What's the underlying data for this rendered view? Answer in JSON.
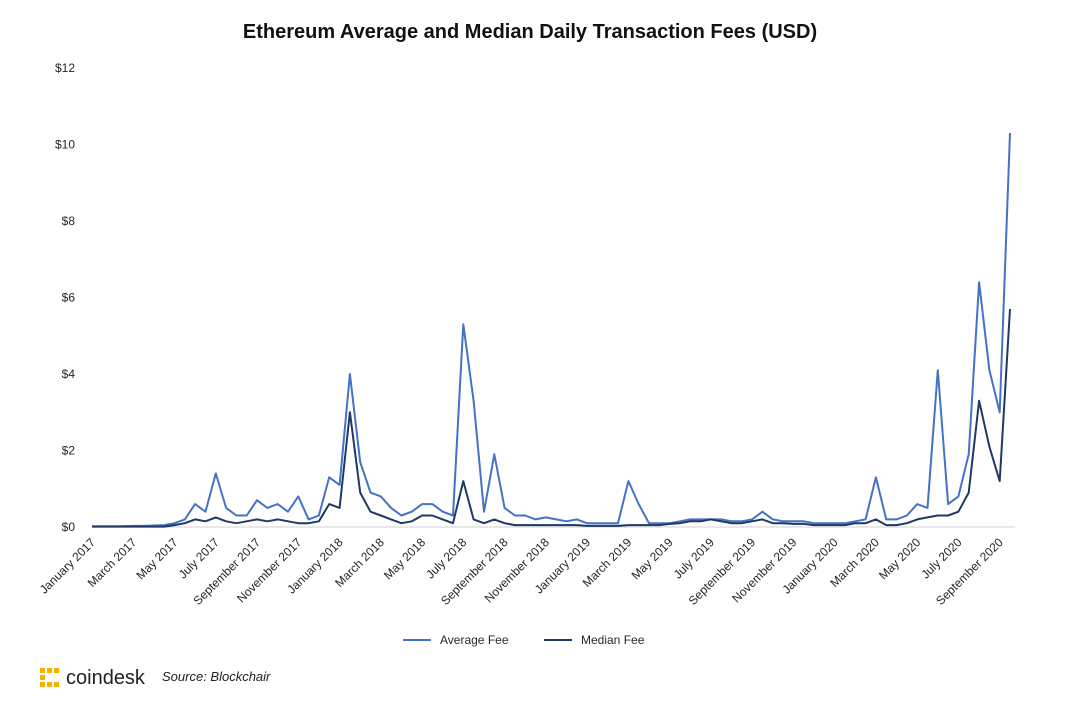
{
  "chart_data": {
    "type": "line",
    "title": "Ethereum Average and Median Daily Transaction Fees (USD)",
    "brand": "coindesk",
    "source": "Source: Blockchair",
    "categories": [
      "January 2017",
      null,
      null,
      null,
      "March 2017",
      null,
      null,
      null,
      "May 2017",
      null,
      null,
      null,
      "July 2017",
      null,
      null,
      null,
      "September 2017",
      null,
      null,
      null,
      "November 2017",
      null,
      null,
      null,
      "January 2018",
      null,
      null,
      null,
      "March 2018",
      null,
      null,
      null,
      "May 2018",
      null,
      null,
      null,
      "July 2018",
      null,
      null,
      null,
      "September 2018",
      null,
      null,
      null,
      "November 2018",
      null,
      null,
      null,
      "January 2019",
      null,
      null,
      null,
      "March 2019",
      null,
      null,
      null,
      "May 2019",
      null,
      null,
      null,
      "July 2019",
      null,
      null,
      null,
      "September 2019",
      null,
      null,
      null,
      "November 2019",
      null,
      null,
      null,
      "January 2020",
      null,
      null,
      null,
      "March 2020",
      null,
      null,
      null,
      "May 2020",
      null,
      null,
      null,
      "July 2020",
      null,
      null,
      null,
      "September 2020",
      null
    ],
    "series": [
      {
        "name": "Average Fee",
        "color": "#4472c4",
        "values": [
          0.02,
          0.02,
          0.02,
          0.02,
          0.03,
          0.03,
          0.04,
          0.05,
          0.1,
          0.2,
          0.6,
          0.4,
          1.4,
          0.5,
          0.3,
          0.3,
          0.7,
          0.5,
          0.6,
          0.4,
          0.8,
          0.2,
          0.3,
          1.3,
          1.1,
          4.0,
          1.7,
          0.9,
          0.8,
          0.5,
          0.3,
          0.4,
          0.6,
          0.6,
          0.4,
          0.3,
          5.3,
          3.3,
          0.4,
          1.9,
          0.5,
          0.3,
          0.3,
          0.2,
          0.25,
          0.2,
          0.15,
          0.2,
          0.1,
          0.1,
          0.1,
          0.1,
          1.2,
          0.6,
          0.1,
          0.1,
          0.1,
          0.15,
          0.2,
          0.2,
          0.2,
          0.2,
          0.15,
          0.15,
          0.2,
          0.4,
          0.2,
          0.15,
          0.15,
          0.15,
          0.1,
          0.1,
          0.1,
          0.1,
          0.15,
          0.2,
          1.3,
          0.2,
          0.2,
          0.3,
          0.6,
          0.5,
          4.1,
          0.6,
          0.8,
          1.9,
          6.4,
          4.1,
          3.0,
          10.3
        ]
      },
      {
        "name": "Median Fee",
        "color": "#1f3864",
        "values": [
          0.01,
          0.01,
          0.01,
          0.01,
          0.01,
          0.01,
          0.01,
          0.01,
          0.05,
          0.1,
          0.2,
          0.15,
          0.25,
          0.15,
          0.1,
          0.15,
          0.2,
          0.15,
          0.2,
          0.15,
          0.1,
          0.1,
          0.15,
          0.6,
          0.5,
          3.0,
          0.9,
          0.4,
          0.3,
          0.2,
          0.1,
          0.15,
          0.3,
          0.3,
          0.2,
          0.1,
          1.2,
          0.2,
          0.1,
          0.2,
          0.1,
          0.05,
          0.05,
          0.05,
          0.05,
          0.05,
          0.05,
          0.05,
          0.03,
          0.03,
          0.03,
          0.03,
          0.05,
          0.05,
          0.05,
          0.05,
          0.08,
          0.1,
          0.15,
          0.15,
          0.2,
          0.15,
          0.1,
          0.1,
          0.15,
          0.2,
          0.1,
          0.1,
          0.08,
          0.08,
          0.05,
          0.05,
          0.05,
          0.05,
          0.1,
          0.1,
          0.2,
          0.05,
          0.05,
          0.1,
          0.2,
          0.25,
          0.3,
          0.3,
          0.4,
          0.9,
          3.3,
          2.1,
          1.2,
          5.7
        ]
      }
    ],
    "ylim": [
      0,
      12
    ],
    "yticks": [
      {
        "value": 0,
        "label": "$0"
      },
      {
        "value": 2,
        "label": "$2"
      },
      {
        "value": 4,
        "label": "$4"
      },
      {
        "value": 6,
        "label": "$6"
      },
      {
        "value": 8,
        "label": "$8"
      },
      {
        "value": 10,
        "label": "$10"
      },
      {
        "value": 12,
        "label": "$12"
      }
    ],
    "grid": false,
    "legend": "bottom"
  }
}
